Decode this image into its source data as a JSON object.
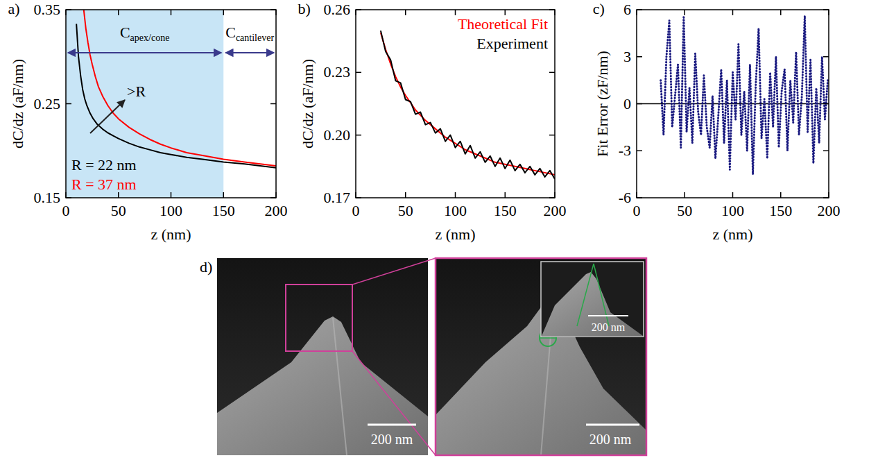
{
  "chart_data": [
    {
      "type": "line",
      "title": "a)",
      "x_label": "z (nm)",
      "y_label": "dC/dz (aF/nm)",
      "xlim": [
        0,
        200
      ],
      "ylim": [
        0.15,
        0.35
      ],
      "xticks": [
        0,
        50,
        100,
        150,
        200
      ],
      "yticks": [
        0.15,
        0.25,
        0.35
      ],
      "legend": "bottom-left",
      "series": [
        {
          "name": "R = 22 nm",
          "color": "#000000",
          "line_style": "solid",
          "x": [
            10,
            12,
            14,
            16,
            18,
            20,
            23,
            26,
            30,
            35,
            40,
            45,
            50,
            60,
            70,
            80,
            90,
            100,
            115,
            130,
            150,
            170,
            185,
            200
          ],
          "values": [
            0.335,
            0.3,
            0.28,
            0.265,
            0.255,
            0.248,
            0.24,
            0.234,
            0.228,
            0.223,
            0.219,
            0.216,
            0.213,
            0.208,
            0.204,
            0.201,
            0.198,
            0.196,
            0.193,
            0.191,
            0.188,
            0.186,
            0.184,
            0.182
          ]
        },
        {
          "name": "R = 37 nm",
          "color": "#ff0000",
          "line_style": "solid",
          "x": [
            17,
            19,
            21,
            23,
            25,
            28,
            31,
            35,
            40,
            45,
            50,
            60,
            70,
            80,
            90,
            100,
            115,
            130,
            150,
            170,
            185,
            200
          ],
          "values": [
            0.35,
            0.33,
            0.315,
            0.302,
            0.292,
            0.279,
            0.268,
            0.258,
            0.248,
            0.24,
            0.234,
            0.225,
            0.218,
            0.212,
            0.207,
            0.203,
            0.198,
            0.195,
            0.191,
            0.188,
            0.186,
            0.184
          ]
        }
      ],
      "regions": [
        {
          "range": [
            0,
            150
          ],
          "color": "#c8e5f6",
          "label": {
            "main": "C",
            "sub": "apex/cone"
          }
        },
        {
          "range": [
            150,
            200
          ],
          "label": {
            "main": "C",
            "sub": "cantilever"
          }
        }
      ],
      "annotations": [
        {
          "text": ">R"
        }
      ]
    },
    {
      "type": "line",
      "title": "b)",
      "x_label": "z (nm)",
      "y_label": "dC/dz (aF/nm)",
      "xlim": [
        0,
        200
      ],
      "ylim": [
        0.17,
        0.26
      ],
      "xticks": [
        0,
        50,
        100,
        150,
        200
      ],
      "yticks": [
        0.17,
        {
          "value": 0.2,
          "label": "0.20"
        },
        0.23,
        0.26
      ],
      "legend": "top-right",
      "series": [
        {
          "name": "Theoretical Fit",
          "color": "#ff0000",
          "line_style": "solid",
          "x": [
            25,
            30,
            35,
            40,
            45,
            50,
            60,
            70,
            80,
            90,
            100,
            110,
            120,
            130,
            140,
            150,
            160,
            170,
            180,
            190,
            200
          ],
          "values": [
            0.249,
            0.241,
            0.234,
            0.228,
            0.223,
            0.219,
            0.212,
            0.207,
            0.203,
            0.199,
            0.196,
            0.193,
            0.191,
            0.189,
            0.187,
            0.186,
            0.185,
            0.184,
            0.183,
            0.182,
            0.181
          ]
        },
        {
          "name": "Experiment",
          "color": "#000000",
          "line_style": "solid",
          "x": [
            25,
            30,
            35,
            40,
            45,
            50,
            55,
            60,
            65,
            70,
            75,
            80,
            85,
            90,
            95,
            100,
            105,
            110,
            115,
            120,
            125,
            130,
            135,
            140,
            145,
            150,
            155,
            160,
            165,
            170,
            175,
            180,
            185,
            190,
            195,
            200
          ],
          "values": [
            0.25,
            0.24,
            0.236,
            0.226,
            0.225,
            0.217,
            0.216,
            0.21,
            0.211,
            0.205,
            0.206,
            0.201,
            0.203,
            0.197,
            0.2,
            0.194,
            0.197,
            0.191,
            0.195,
            0.189,
            0.192,
            0.187,
            0.19,
            0.185,
            0.189,
            0.184,
            0.188,
            0.183,
            0.186,
            0.182,
            0.185,
            0.181,
            0.184,
            0.18,
            0.183,
            0.179
          ]
        }
      ]
    },
    {
      "type": "line",
      "title": "c)",
      "x_label": "z (nm)",
      "y_label": "Fit Error (zF/nm)",
      "xlim": [
        0,
        200
      ],
      "ylim": [
        -6,
        6
      ],
      "xticks": [
        0,
        50,
        100,
        150,
        200
      ],
      "yticks": [
        -6,
        -3,
        0,
        3,
        6
      ],
      "reference_line": 0,
      "series": [
        {
          "color": "#1a1a80",
          "line_style": "dotted",
          "x": [
            25,
            28,
            31,
            34,
            37,
            40,
            43,
            46,
            49,
            52,
            55,
            58,
            61,
            64,
            67,
            70,
            73,
            76,
            79,
            82,
            85,
            88,
            91,
            94,
            97,
            100,
            103,
            106,
            109,
            112,
            115,
            118,
            121,
            124,
            127,
            130,
            133,
            136,
            139,
            142,
            145,
            148,
            151,
            154,
            157,
            160,
            163,
            166,
            169,
            172,
            175,
            178,
            181,
            184,
            187,
            190,
            193,
            196,
            199
          ],
          "values": [
            1.5,
            -2.0,
            3.0,
            5.3,
            -1.5,
            0.5,
            2.5,
            -2.8,
            5.6,
            -1.8,
            1.0,
            -2.5,
            3.2,
            -0.5,
            -2.0,
            1.8,
            -1.5,
            -2.8,
            0.5,
            -3.5,
            -0.8,
            2.2,
            -2.5,
            1.5,
            -4.2,
            2.0,
            -1.0,
            3.8,
            -2.0,
            0.8,
            -3.0,
            2.5,
            -4.5,
            1.2,
            4.8,
            -2.2,
            0.3,
            -3.5,
            2.0,
            -1.5,
            3.0,
            -2.8,
            0.8,
            2.2,
            -3.0,
            1.5,
            -1.2,
            3.3,
            -2.0,
            0.5,
            5.6,
            -1.8,
            2.8,
            -3.8,
            1.0,
            -2.5,
            3.0,
            -1.0,
            1.5
          ]
        }
      ]
    }
  ],
  "images": {
    "label": "d)",
    "scale_bars": [
      "200 nm",
      "200 nm",
      "200 nm"
    ]
  }
}
